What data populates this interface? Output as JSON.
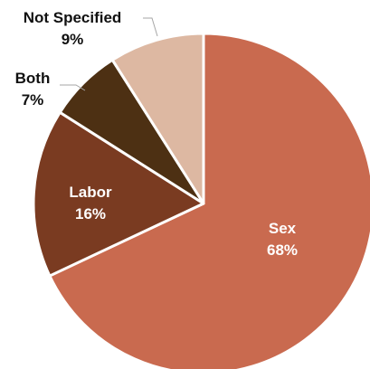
{
  "chart_data": {
    "type": "pie",
    "title": "",
    "slices": [
      {
        "label": "Sex",
        "percent_label": "68%",
        "value": 68,
        "color": "#c96a4f",
        "label_color": "#ffffff"
      },
      {
        "label": "Labor",
        "percent_label": "16%",
        "value": 16,
        "color": "#7a3b21",
        "label_color": "#ffffff"
      },
      {
        "label": "Both",
        "percent_label": "7%",
        "value": 7,
        "color": "#4d3013",
        "label_color": "#111111"
      },
      {
        "label": "Not Specified",
        "percent_label": "9%",
        "value": 9,
        "color": "#ddb8a2",
        "label_color": "#111111"
      }
    ],
    "start_angle_deg": 0,
    "direction": "clockwise",
    "legend": "none"
  }
}
